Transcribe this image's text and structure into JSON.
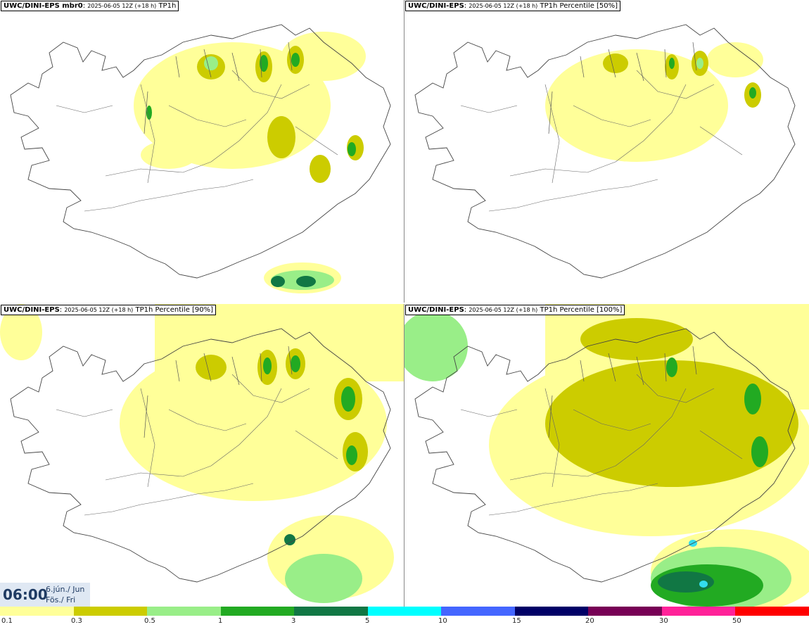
{
  "panels": [
    {
      "model": "UWC/DINI-EPS mbr0",
      "run": "2025-06-05 12Z (+18 h)",
      "field": "TP1h"
    },
    {
      "model": "UWC/DINI-EPS",
      "run": "2025-06-05 12Z (+18 h)",
      "field": "TP1h Percentile [50%]"
    },
    {
      "model": "UWC/DINI-EPS",
      "run": "2025-06-05 12Z (+18 h)",
      "field": "TP1h Percentile [90%]"
    },
    {
      "model": "UWC/DINI-EPS",
      "run": "2025-06-05 12Z (+18 h)",
      "field": "TP1h Percentile [100%]"
    }
  ],
  "valid_time": {
    "time": "06:00",
    "date_line": "6.jún./ Jun",
    "day_line": "Fös./ Fri"
  },
  "legend": {
    "labels": [
      "0.1",
      "0.3",
      "0.5",
      "1",
      "3",
      "5",
      "10",
      "15",
      "20",
      "30",
      "50"
    ],
    "colors": [
      "#ffff99",
      "#cccc00",
      "#99ee88",
      "#22aa22",
      "#117744",
      "#00ffff",
      "#4466ff",
      "#000066",
      "#770055",
      "#ff2299",
      "#ff0000"
    ]
  },
  "colors": {
    "light_yellow": "#ffff99",
    "olive": "#cccc00",
    "light_green": "#99ee88",
    "green": "#22aa22",
    "dark_green": "#117744",
    "cyan": "#33ddee"
  }
}
